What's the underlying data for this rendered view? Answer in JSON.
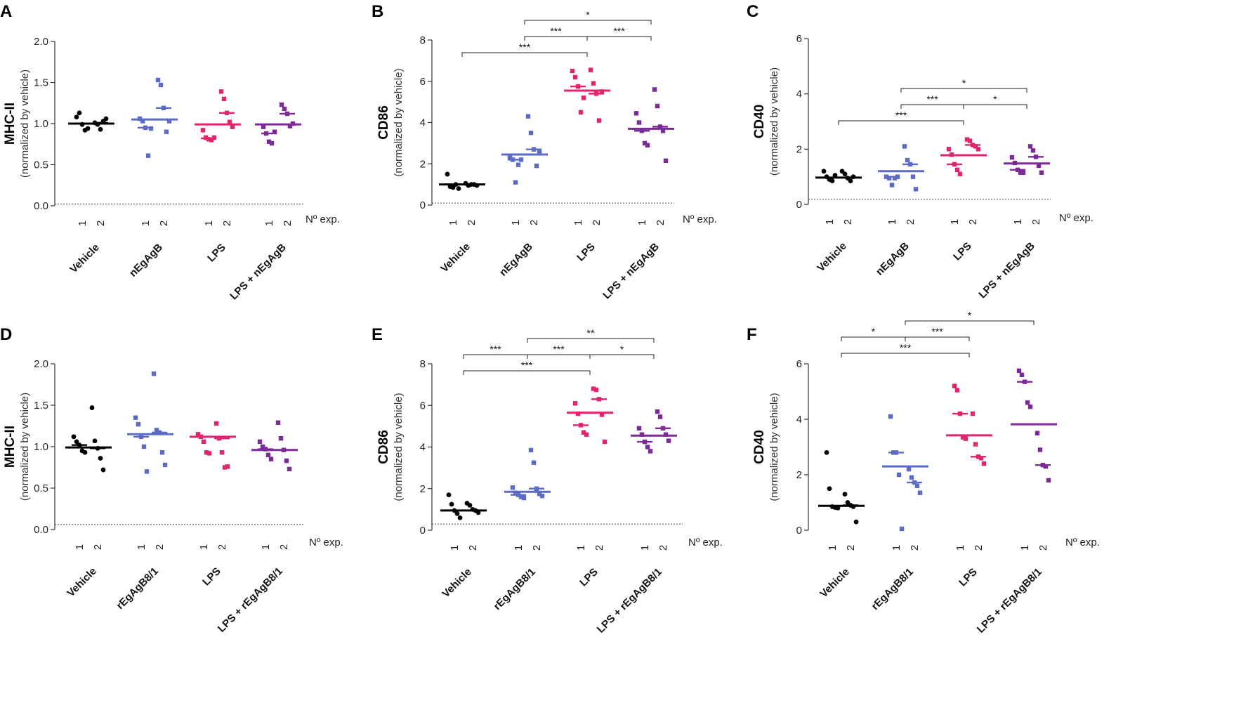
{
  "colors": {
    "vehicle": "#000000",
    "treatment": "#5b6bc6",
    "lps": "#e0256e",
    "combo": "#7b2a96"
  },
  "chart_data": [
    {
      "panel": "A",
      "type": "scatter",
      "ylabel": "MHC-II",
      "ylabel_sub": "(normalized by vehicle)",
      "ylim": [
        0,
        2.0
      ],
      "yticks": [
        "0.0",
        "0.5",
        "1.0",
        "1.5",
        "2.0"
      ],
      "tick_values": [
        0,
        0.5,
        1.0,
        1.5,
        2.0
      ],
      "baseline": 0.02,
      "exp_label": "Nº exp.",
      "exp_ticks": [
        "1",
        "2"
      ],
      "groups": [
        {
          "label": "Vehicle",
          "color": "vehicle",
          "mean": 1.0,
          "exp_means": [
            1.0,
            1.01
          ],
          "exp1": [
            1.08,
            1.13,
            0.99,
            0.92,
            0.94
          ],
          "exp2": [
            1.01,
            0.99,
            0.93,
            1.03,
            1.06
          ]
        },
        {
          "label": "nEgAgB",
          "color": "treatment",
          "mean": 1.05,
          "exp_means": [
            0.95,
            1.19
          ],
          "exp1": [
            1.06,
            1.03,
            0.95,
            0.61,
            0.94
          ],
          "exp2": [
            1.53,
            1.47,
            1.19,
            0.9,
            1.03
          ]
        },
        {
          "label": "LPS",
          "color": "lps",
          "mean": 0.99,
          "exp_means": [
            0.82,
            1.13
          ],
          "exp1": [
            0.92,
            0.83,
            0.81,
            0.8,
            0.83
          ],
          "exp2": [
            1.39,
            1.3,
            1.13,
            1.02,
            0.96
          ]
        },
        {
          "label": "LPS + nEgAgB",
          "color": "combo",
          "mean": 0.99,
          "exp_means": [
            0.88,
            1.12
          ],
          "exp1": [
            0.96,
            0.88,
            0.78,
            0.76,
            0.9
          ],
          "exp2": [
            1.23,
            1.18,
            1.12,
            0.97,
            1.0
          ]
        }
      ],
      "significance": []
    },
    {
      "panel": "B",
      "type": "scatter",
      "ylabel": "CD86",
      "ylabel_sub": "(normalized by vehicle)",
      "ylim": [
        0,
        8
      ],
      "yticks": [
        "0",
        "2",
        "4",
        "6",
        "8"
      ],
      "tick_values": [
        0,
        2,
        4,
        6,
        8
      ],
      "baseline": 0.1,
      "exp_label": "Nº exp.",
      "exp_ticks": [
        "1",
        "2"
      ],
      "groups": [
        {
          "label": "Vehicle",
          "color": "vehicle",
          "mean": 1.0,
          "exp_means": [
            1.0,
            1.0
          ],
          "exp1": [
            1.5,
            0.9,
            0.85,
            1.0,
            0.8
          ],
          "exp2": [
            1.05,
            0.95,
            1.0,
            1.0,
            0.95
          ]
        },
        {
          "label": "nEgAgB",
          "color": "treatment",
          "mean": 2.45,
          "exp_means": [
            2.2,
            2.7
          ],
          "exp1": [
            2.3,
            2.2,
            1.1,
            1.95,
            2.2
          ],
          "exp2": [
            4.3,
            3.5,
            2.7,
            1.9,
            2.6
          ]
        },
        {
          "label": "LPS",
          "color": "lps",
          "mean": 5.55,
          "exp_means": [
            5.75,
            5.4
          ],
          "exp1": [
            6.5,
            6.2,
            5.75,
            4.5,
            5.2
          ],
          "exp2": [
            6.55,
            5.9,
            5.4,
            4.1,
            5.5
          ]
        },
        {
          "label": "LPS + nEgAgB",
          "color": "combo",
          "mean": 3.7,
          "exp_means": [
            3.6,
            3.8
          ],
          "exp1": [
            4.45,
            4.0,
            3.6,
            3.0,
            2.9
          ],
          "exp2": [
            5.6,
            4.8,
            3.8,
            3.6,
            2.15
          ]
        }
      ],
      "significance": [
        {
          "from": 0,
          "to": 2,
          "level": 1,
          "label": "***"
        },
        {
          "from": 1,
          "to": 2,
          "level": 2,
          "label": "***"
        },
        {
          "from": 2,
          "to": 3,
          "level": 2,
          "label": "***"
        },
        {
          "from": 1,
          "to": 3,
          "level": 3,
          "label": "*"
        }
      ]
    },
    {
      "panel": "C",
      "type": "scatter",
      "ylabel": "CD40",
      "ylabel_sub": "(normalized by vehicle)",
      "ylim": [
        0,
        6
      ],
      "yticks": [
        "0",
        "2",
        "4",
        "6"
      ],
      "tick_values": [
        0,
        2,
        4,
        6
      ],
      "baseline": 0.18,
      "exp_label": "Nº exp.",
      "exp_ticks": [
        "1",
        "2"
      ],
      "groups": [
        {
          "label": "Vehicle",
          "color": "vehicle",
          "mean": 0.97,
          "exp_means": [
            0.97,
            0.97
          ],
          "exp1": [
            1.2,
            1.0,
            0.9,
            0.85,
            1.05
          ],
          "exp2": [
            1.2,
            1.1,
            0.95,
            0.85,
            1.0
          ]
        },
        {
          "label": "nEgAgB",
          "color": "treatment",
          "mean": 1.2,
          "exp_means": [
            1.0,
            1.45
          ],
          "exp1": [
            1.0,
            0.95,
            0.7,
            0.95,
            1.0
          ],
          "exp2": [
            2.1,
            1.6,
            1.45,
            1.0,
            0.55
          ]
        },
        {
          "label": "LPS",
          "color": "lps",
          "mean": 1.78,
          "exp_means": [
            1.45,
            2.15
          ],
          "exp1": [
            2.0,
            1.8,
            1.45,
            1.25,
            1.1
          ],
          "exp2": [
            2.35,
            2.3,
            2.15,
            2.1,
            2.0
          ]
        },
        {
          "label": "LPS + nEgAgB",
          "color": "combo",
          "mean": 1.48,
          "exp_means": [
            1.25,
            1.72
          ],
          "exp1": [
            1.7,
            1.5,
            1.25,
            1.15,
            1.15
          ],
          "exp2": [
            2.1,
            1.95,
            1.72,
            1.4,
            1.15
          ]
        }
      ],
      "significance": [
        {
          "from": 0,
          "to": 2,
          "level": 1,
          "label": "***"
        },
        {
          "from": 1,
          "to": 2,
          "level": 2,
          "label": "***"
        },
        {
          "from": 2,
          "to": 3,
          "level": 2,
          "label": "*"
        },
        {
          "from": 1,
          "to": 3,
          "level": 3,
          "label": "*"
        }
      ]
    },
    {
      "panel": "D",
      "type": "scatter",
      "ylabel": "MHC-II",
      "ylabel_sub": "(normalized by vehicle)",
      "ylim": [
        0,
        2.0
      ],
      "yticks": [
        "0.0",
        "0.5",
        "1.0",
        "1.5",
        "2.0"
      ],
      "tick_values": [
        0,
        0.5,
        1.0,
        1.5,
        2.0
      ],
      "baseline": 0.06,
      "exp_label": "Nº exp.",
      "exp_ticks": [
        "1",
        "2"
      ],
      "groups": [
        {
          "label": "Vehicle",
          "color": "vehicle",
          "mean": 0.99,
          "exp_means": [
            1.02,
            0.98
          ],
          "exp1": [
            1.12,
            1.06,
            1.02,
            0.95,
            0.93
          ],
          "exp2": [
            1.47,
            1.07,
            0.98,
            0.86,
            0.72
          ]
        },
        {
          "label": "rEgAgB8/1",
          "color": "treatment",
          "mean": 1.15,
          "exp_means": [
            1.12,
            1.17
          ],
          "exp1": [
            1.35,
            1.27,
            1.12,
            1.0,
            0.7
          ],
          "exp2": [
            1.88,
            1.2,
            1.17,
            0.93,
            0.78
          ]
        },
        {
          "label": "LPS",
          "color": "lps",
          "mean": 1.12,
          "exp_means": [
            1.12,
            1.1
          ],
          "exp1": [
            1.15,
            1.12,
            1.06,
            0.93,
            0.92
          ],
          "exp2": [
            1.28,
            1.1,
            0.93,
            0.75,
            0.76
          ]
        },
        {
          "label": "LPS + rEgAgB8/1",
          "color": "combo",
          "mean": 0.96,
          "exp_means": [
            0.97,
            0.96
          ],
          "exp1": [
            1.06,
            1.0,
            0.97,
            0.9,
            0.85
          ],
          "exp2": [
            1.29,
            1.1,
            0.96,
            0.83,
            0.73
          ]
        }
      ],
      "significance": []
    },
    {
      "panel": "E",
      "type": "scatter",
      "ylabel": "CD86",
      "ylabel_sub": "(normalized by vehicle)",
      "ylim": [
        0,
        8
      ],
      "yticks": [
        "0",
        "2",
        "4",
        "6",
        "8"
      ],
      "tick_values": [
        0,
        2,
        4,
        6,
        8
      ],
      "baseline": 0.3,
      "exp_label": "Nº exp.",
      "exp_ticks": [
        "1",
        "2"
      ],
      "groups": [
        {
          "label": "Vehicle",
          "color": "vehicle",
          "mean": 0.95,
          "exp_means": [
            0.95,
            0.95
          ],
          "exp1": [
            1.7,
            1.25,
            0.95,
            0.8,
            0.6
          ],
          "exp2": [
            1.3,
            1.2,
            1.0,
            0.95,
            0.85
          ]
        },
        {
          "label": "rEgAgB8/1",
          "color": "treatment",
          "mean": 1.85,
          "exp_means": [
            1.7,
            2.0
          ],
          "exp1": [
            2.05,
            1.8,
            1.7,
            1.6,
            1.55
          ],
          "exp2": [
            3.85,
            3.25,
            2.0,
            1.75,
            1.65
          ]
        },
        {
          "label": "LPS",
          "color": "lps",
          "mean": 5.65,
          "exp_means": [
            5.05,
            6.3
          ],
          "exp1": [
            6.1,
            5.6,
            5.05,
            4.7,
            4.6
          ],
          "exp2": [
            6.8,
            6.75,
            6.3,
            5.55,
            4.25
          ]
        },
        {
          "label": "LPS + rEgAgB8/1",
          "color": "combo",
          "mean": 4.55,
          "exp_means": [
            4.25,
            4.9
          ],
          "exp1": [
            4.9,
            4.6,
            4.25,
            4.0,
            3.8
          ],
          "exp2": [
            5.7,
            5.45,
            4.9,
            4.6,
            4.3
          ]
        }
      ],
      "significance": [
        {
          "from": 0,
          "to": 2,
          "level": 1,
          "label": "***"
        },
        {
          "from": 0,
          "to": 1,
          "level": 2,
          "label": "***"
        },
        {
          "from": 1,
          "to": 2,
          "level": 2,
          "label": "***"
        },
        {
          "from": 2,
          "to": 3,
          "level": 2,
          "label": "*"
        },
        {
          "from": 1,
          "to": 3,
          "level": 3,
          "label": "**"
        }
      ]
    },
    {
      "panel": "F",
      "type": "scatter",
      "ylabel": "CD40",
      "ylabel_sub": "(normalized by vehicle)",
      "ylim": [
        0,
        6
      ],
      "yticks": [
        "0",
        "2",
        "4",
        "6"
      ],
      "tick_values": [
        0,
        2,
        4,
        6
      ],
      "baseline": null,
      "exp_label": "Nº exp.",
      "exp_ticks": [
        "1",
        "2"
      ],
      "groups": [
        {
          "label": "Vehicle",
          "color": "vehicle",
          "mean": 0.88,
          "exp_means": [
            0.88,
            0.9
          ],
          "exp1": [
            2.8,
            1.5,
            0.85,
            0.82,
            0.8
          ],
          "exp2": [
            1.3,
            1.0,
            0.9,
            0.85,
            0.3
          ]
        },
        {
          "label": "rEgAgB8/1",
          "color": "treatment",
          "mean": 2.3,
          "exp_means": [
            2.8,
            1.72
          ],
          "exp1": [
            4.1,
            2.8,
            2.8,
            2.0,
            0.05
          ],
          "exp2": [
            2.2,
            1.9,
            1.72,
            1.6,
            1.35
          ]
        },
        {
          "label": "LPS",
          "color": "lps",
          "mean": 3.42,
          "exp_means": [
            4.2,
            2.65
          ],
          "exp1": [
            5.2,
            5.05,
            4.2,
            3.35,
            3.3
          ],
          "exp2": [
            4.2,
            3.1,
            2.65,
            2.6,
            2.4
          ]
        },
        {
          "label": "LPS + rEgAgB8/1",
          "color": "combo",
          "mean": 3.82,
          "exp_means": [
            5.35,
            2.35
          ],
          "exp1": [
            5.75,
            5.6,
            5.35,
            4.6,
            4.45
          ],
          "exp2": [
            3.5,
            2.9,
            2.35,
            2.3,
            1.8
          ]
        }
      ],
      "significance": [
        {
          "from": 0,
          "to": 2,
          "level": 1,
          "label": "***"
        },
        {
          "from": 0,
          "to": 1,
          "level": 2,
          "label": "*"
        },
        {
          "from": 1,
          "to": 2,
          "level": 2,
          "label": "***"
        },
        {
          "from": 1,
          "to": 3,
          "level": 3,
          "label": "*"
        }
      ]
    }
  ]
}
